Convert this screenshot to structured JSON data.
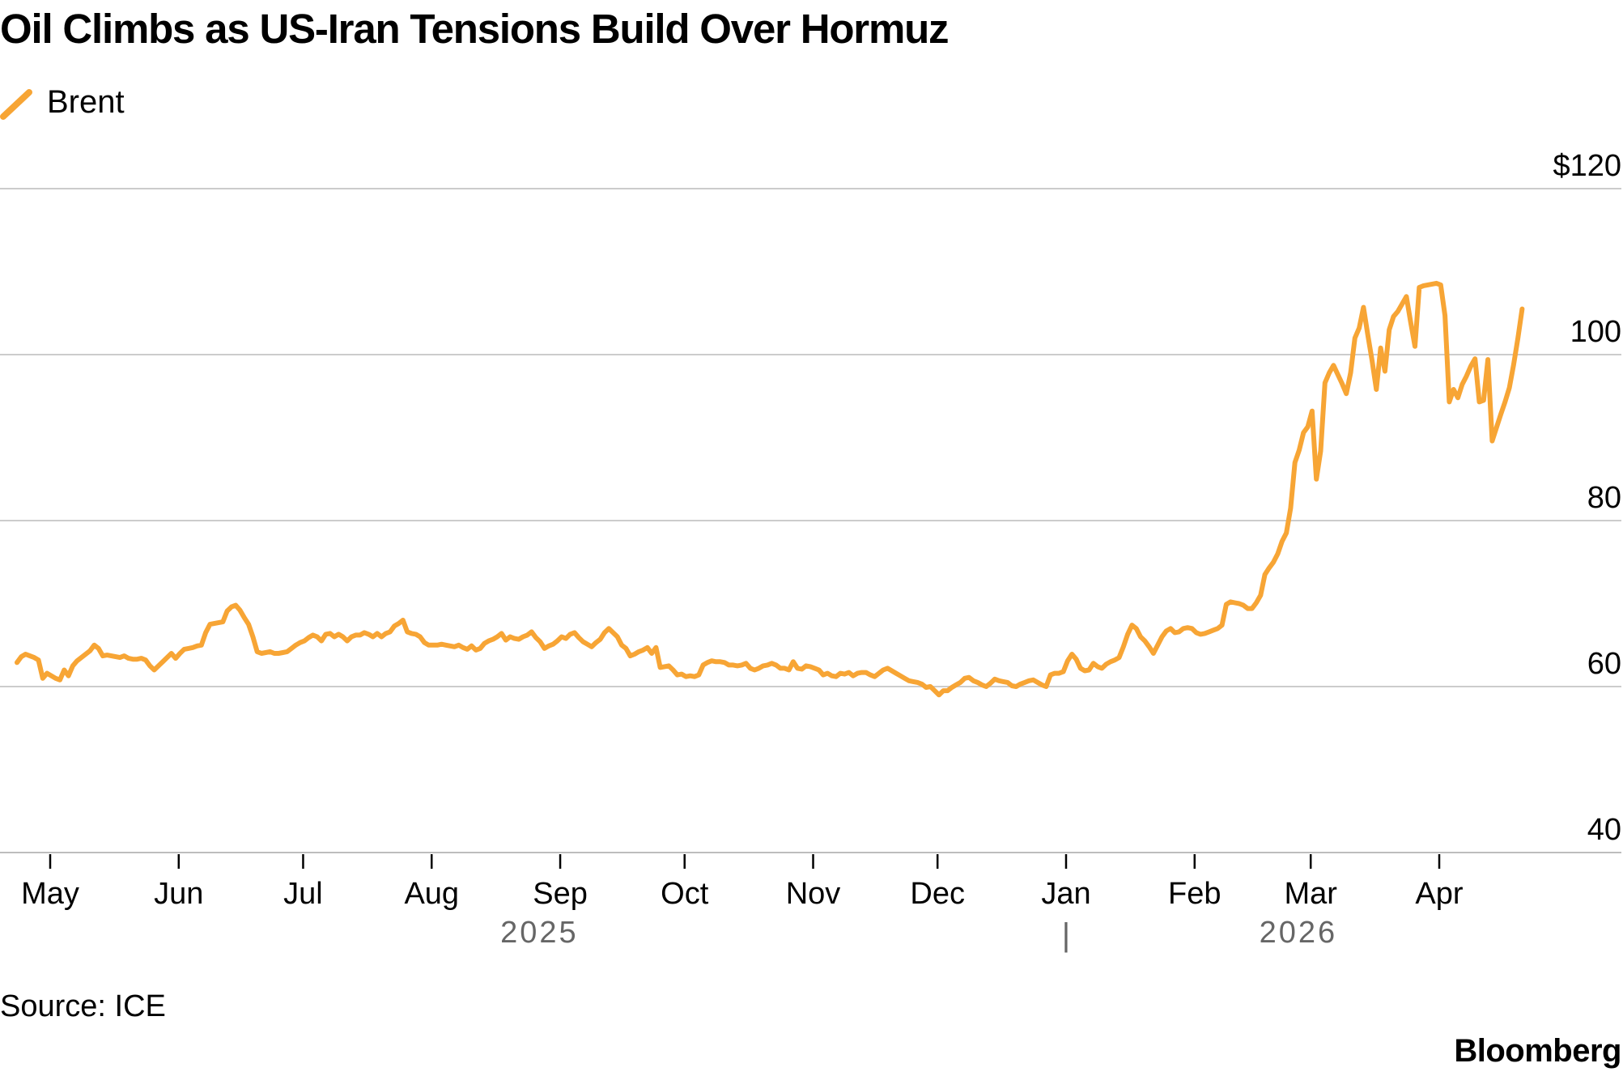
{
  "title": "Oil Climbs as US-Iran Tensions Build Over Hormuz",
  "source": "Source: ICE",
  "brand": "Bloomberg",
  "colors": {
    "line": "#F7A535",
    "grid": "#cccccc",
    "text": "#000000",
    "year_text": "#666666"
  },
  "chart_data": {
    "type": "line",
    "series": [
      {
        "name": "Brent",
        "x_start": "2025-04-23",
        "x_end": "2026-04-21",
        "values": [
          62.9,
          63.6,
          63.9,
          63.7,
          63.5,
          63.2,
          61.0,
          61.6,
          61.3,
          61.0,
          60.8,
          62.0,
          61.3,
          62.5,
          63.1,
          63.5,
          63.9,
          64.3,
          65.0,
          64.6,
          63.7,
          63.8,
          63.7,
          63.6,
          63.5,
          63.7,
          63.4,
          63.3,
          63.3,
          63.4,
          63.2,
          62.5,
          62.0,
          62.5,
          63.0,
          63.5,
          64.0,
          63.4,
          64.0,
          64.5,
          64.6,
          64.7,
          64.9,
          65.0,
          66.5,
          67.5,
          67.6,
          67.7,
          67.8,
          69.1,
          69.6,
          69.8,
          69.2,
          68.3,
          67.5,
          66.0,
          64.2,
          64.0,
          64.1,
          64.2,
          64.0,
          64.0,
          64.1,
          64.2,
          64.6,
          65.0,
          65.3,
          65.5,
          65.9,
          66.2,
          66.0,
          65.5,
          66.3,
          66.4,
          66.0,
          66.3,
          66.0,
          65.5,
          66.0,
          66.2,
          66.2,
          66.5,
          66.3,
          66.0,
          66.4,
          66.0,
          66.4,
          66.6,
          67.3,
          67.6,
          68.0,
          66.6,
          66.4,
          66.3,
          66.0,
          65.3,
          65.0,
          65.0,
          65.0,
          65.1,
          65.0,
          64.9,
          64.8,
          65.0,
          64.7,
          64.5,
          64.9,
          64.4,
          64.6,
          65.2,
          65.5,
          65.7,
          66.0,
          66.4,
          65.6,
          66.0,
          65.8,
          65.7,
          66.0,
          66.2,
          66.6,
          65.9,
          65.4,
          64.6,
          64.9,
          65.1,
          65.5,
          66.0,
          65.8,
          66.3,
          66.5,
          65.9,
          65.4,
          65.1,
          64.8,
          65.3,
          65.7,
          66.5,
          67.0,
          66.5,
          66.0,
          65.0,
          64.6,
          63.7,
          63.9,
          64.2,
          64.4,
          64.7,
          64.0,
          64.7,
          62.3,
          62.4,
          62.5,
          62.0,
          61.4,
          61.5,
          61.2,
          61.3,
          61.2,
          61.4,
          62.6,
          62.9,
          63.1,
          63.0,
          63.0,
          62.9,
          62.6,
          62.6,
          62.5,
          62.6,
          62.8,
          62.2,
          62.0,
          62.2,
          62.5,
          62.6,
          62.8,
          62.6,
          62.2,
          62.2,
          62.0,
          63.0,
          62.2,
          62.1,
          62.5,
          62.4,
          62.2,
          62.0,
          61.4,
          61.6,
          61.3,
          61.2,
          61.6,
          61.5,
          61.7,
          61.3,
          61.6,
          61.7,
          61.7,
          61.4,
          61.2,
          61.6,
          62.0,
          62.2,
          61.9,
          61.6,
          61.3,
          61.0,
          60.7,
          60.6,
          60.5,
          60.3,
          59.9,
          60.0,
          59.5,
          59.0,
          59.5,
          59.5,
          59.9,
          60.2,
          60.5,
          61.0,
          61.1,
          60.7,
          60.5,
          60.2,
          60.0,
          60.4,
          60.9,
          60.7,
          60.6,
          60.5,
          60.1,
          60.0,
          60.3,
          60.5,
          60.7,
          60.8,
          60.5,
          60.2,
          60.0,
          61.4,
          61.6,
          61.6,
          61.8,
          63.1,
          63.9,
          63.3,
          62.2,
          61.9,
          62.0,
          62.8,
          62.4,
          62.2,
          62.7,
          63.0,
          63.2,
          63.5,
          64.8,
          66.3,
          67.4,
          67.0,
          66.0,
          65.5,
          64.8,
          64.0,
          65.0,
          66.0,
          66.7,
          67.0,
          66.5,
          66.6,
          67.0,
          67.1,
          67.0,
          66.5,
          66.3,
          66.4,
          66.6,
          66.8,
          67.0,
          67.4,
          69.9,
          70.2,
          70.1,
          70.0,
          69.8,
          69.4,
          69.4,
          70.1,
          71.0,
          73.5,
          74.3,
          75.0,
          76.0,
          77.5,
          78.5,
          81.5,
          87.0,
          88.5,
          90.6,
          91.3,
          93.2,
          85.0,
          88.4,
          96.6,
          97.8,
          98.7,
          97.6,
          96.5,
          95.3,
          97.8,
          102.0,
          103.2,
          105.7,
          102.4,
          99.3,
          95.8,
          100.8,
          98.0,
          103.0,
          104.6,
          105.2,
          106.1,
          107.0,
          103.9,
          101.0,
          108.1,
          108.3,
          108.4,
          108.5,
          108.6,
          108.4,
          104.7,
          94.3,
          95.8,
          94.8,
          96.4,
          97.4,
          98.6,
          99.5,
          94.3,
          94.5,
          99.4,
          89.6,
          91.2,
          92.8,
          94.3,
          96.0,
          98.8,
          102.0,
          105.5
        ]
      }
    ],
    "y_ticks": [
      {
        "value": 120,
        "label": "$120"
      },
      {
        "value": 100,
        "label": "100"
      },
      {
        "value": 80,
        "label": "80"
      },
      {
        "value": 60,
        "label": "60"
      },
      {
        "value": 40,
        "label": "40"
      }
    ],
    "ylim": [
      40,
      120
    ],
    "x_ticks": [
      {
        "date": "2025-05-01",
        "label": "May"
      },
      {
        "date": "2025-06-01",
        "label": "Jun"
      },
      {
        "date": "2025-07-01",
        "label": "Jul"
      },
      {
        "date": "2025-08-01",
        "label": "Aug"
      },
      {
        "date": "2025-09-01",
        "label": "Sep"
      },
      {
        "date": "2025-10-01",
        "label": "Oct"
      },
      {
        "date": "2025-11-01",
        "label": "Nov"
      },
      {
        "date": "2025-12-01",
        "label": "Dec"
      },
      {
        "date": "2026-01-01",
        "label": "Jan"
      },
      {
        "date": "2026-02-01",
        "label": "Feb"
      },
      {
        "date": "2026-03-01",
        "label": "Mar"
      },
      {
        "date": "2026-04-01",
        "label": "Apr"
      }
    ],
    "years": [
      {
        "label": "2025",
        "center_date": "2025-08-27"
      },
      {
        "label": "2026",
        "center_date": "2026-02-26"
      }
    ],
    "year_divider": {
      "date": "2026-01-01",
      "label": "|"
    },
    "title": "Oil Climbs as US-Iran Tensions Build Over Hormuz",
    "xlabel": "",
    "ylabel": "",
    "grid": true,
    "legend": "top-left"
  }
}
